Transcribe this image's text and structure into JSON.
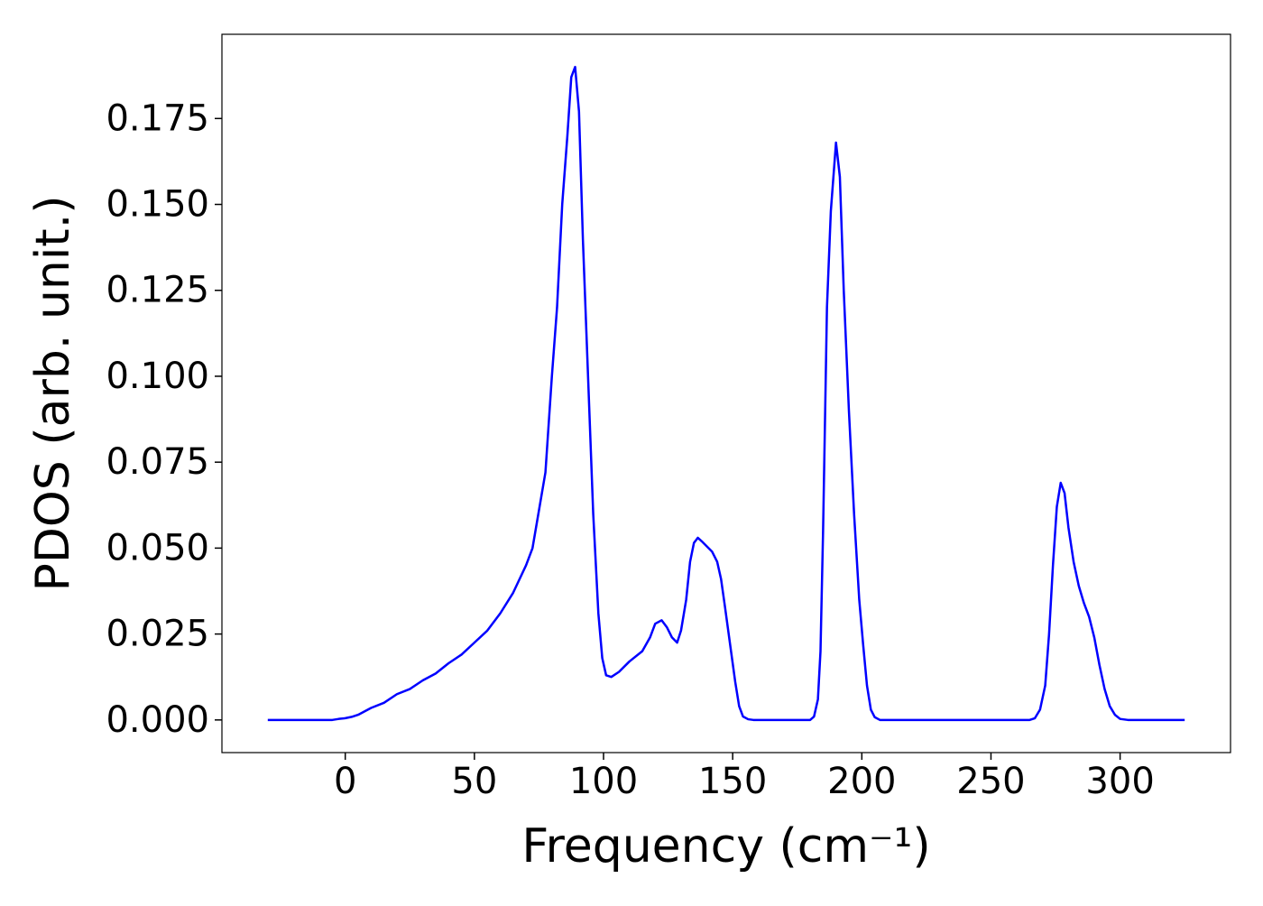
{
  "chart_data": {
    "type": "line",
    "x_label": "Frequency (cm⁻¹)",
    "y_label": "PDOS (arb. unit.)",
    "series": [
      {
        "color": "#0000ff",
        "x": [
          -30,
          -20,
          -10,
          -5,
          -2.5,
          0,
          2.5,
          5,
          10,
          15,
          20,
          25,
          30,
          35,
          40,
          45,
          50,
          55,
          60,
          65,
          70,
          72.5,
          75,
          77.5,
          80,
          82,
          84,
          86,
          87.5,
          89,
          90.5,
          92,
          94,
          96,
          98,
          99.5,
          101,
          103,
          106,
          110,
          115,
          118,
          120,
          122.5,
          124.5,
          126.5,
          128.5,
          130,
          132,
          133.5,
          135,
          136.5,
          138,
          140,
          142,
          144,
          145.5,
          147,
          149,
          151,
          152.5,
          154,
          156,
          158,
          170,
          180,
          181.5,
          183,
          184,
          185,
          186.5,
          188,
          190,
          191.5,
          193,
          195,
          197,
          199,
          200.5,
          202,
          203.5,
          205,
          207,
          230,
          265,
          267,
          269,
          271,
          272.5,
          274,
          275.5,
          277,
          278.5,
          280,
          282,
          284,
          286,
          288,
          290,
          292,
          294,
          296,
          298,
          300,
          303,
          325
        ],
        "values": [
          0,
          0,
          0,
          0,
          0.0003,
          0.0005,
          0.0009,
          0.0015,
          0.0035,
          0.005,
          0.0075,
          0.009,
          0.0115,
          0.0135,
          0.0165,
          0.019,
          0.0225,
          0.026,
          0.031,
          0.037,
          0.045,
          0.05,
          0.061,
          0.072,
          0.1,
          0.12,
          0.15,
          0.17,
          0.187,
          0.19,
          0.177,
          0.14,
          0.1,
          0.06,
          0.031,
          0.018,
          0.013,
          0.0125,
          0.014,
          0.017,
          0.02,
          0.024,
          0.028,
          0.029,
          0.027,
          0.024,
          0.0225,
          0.026,
          0.035,
          0.046,
          0.0515,
          0.053,
          0.052,
          0.0505,
          0.049,
          0.046,
          0.041,
          0.033,
          0.022,
          0.011,
          0.004,
          0.001,
          0.0002,
          0,
          0,
          0,
          0.001,
          0.006,
          0.02,
          0.055,
          0.12,
          0.148,
          0.168,
          0.158,
          0.125,
          0.09,
          0.06,
          0.035,
          0.022,
          0.01,
          0.003,
          0.0008,
          0,
          0,
          0,
          0.0005,
          0.003,
          0.01,
          0.025,
          0.045,
          0.062,
          0.069,
          0.066,
          0.056,
          0.046,
          0.039,
          0.034,
          0.03,
          0.024,
          0.016,
          0.009,
          0.004,
          0.0015,
          0.0003,
          0,
          0
        ]
      }
    ],
    "xlim": [
      -47.75,
      342.75
    ],
    "ylim": [
      -0.0095,
      0.1995
    ],
    "xticks": [
      0,
      50,
      100,
      150,
      200,
      250,
      300
    ],
    "yticks": [
      {
        "value": 0,
        "label": "0.000"
      },
      {
        "value": 0.025,
        "label": "0.025"
      },
      {
        "value": 0.05,
        "label": "0.050"
      },
      {
        "value": 0.075,
        "label": "0.075"
      },
      {
        "value": 0.1,
        "label": "0.100"
      },
      {
        "value": 0.125,
        "label": "0.125"
      },
      {
        "value": 0.15,
        "label": "0.150"
      },
      {
        "value": 0.175,
        "label": "0.175"
      }
    ]
  }
}
